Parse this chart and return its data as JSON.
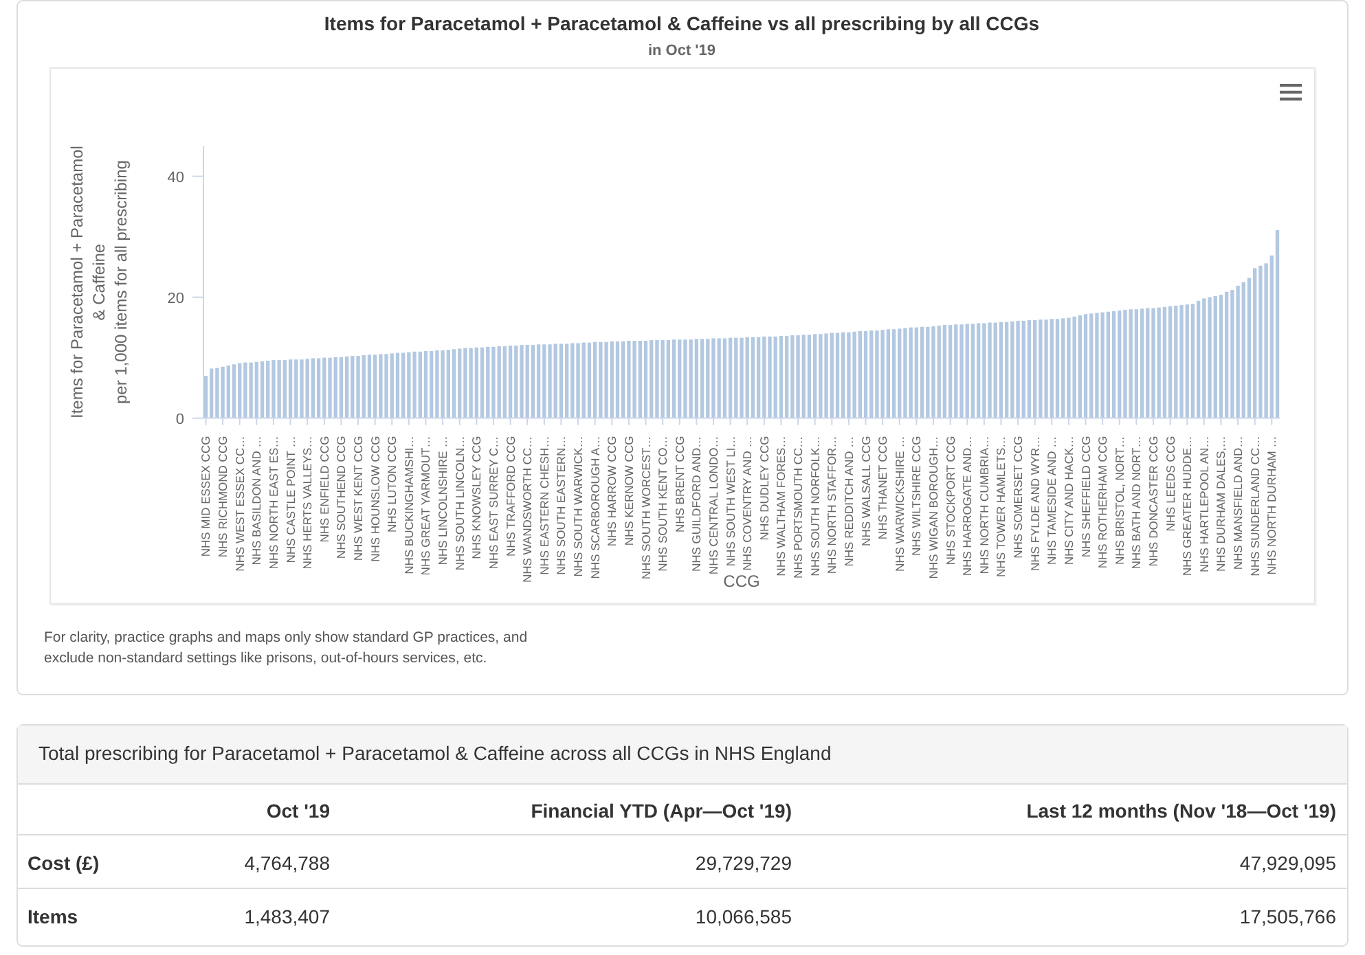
{
  "chart_data": [
    {
      "type": "bar",
      "title": "Items for Paracetamol + Paracetamol & Caffeine vs all prescribing by all CCGs",
      "subtitle": "in Oct '19",
      "xlabel": "CCG",
      "ylabel": "Items for Paracetamol + Paracetamol & Caffeine\nper 1,000 items for all prescribing",
      "categories": [
        "NHS MID ESSEX CCG",
        null,
        null,
        "NHS RICHMOND CCG",
        null,
        null,
        "NHS WEST ESSEX CC…",
        null,
        null,
        "NHS BASILDON AND …",
        null,
        null,
        "NHS NORTH EAST ES…",
        null,
        null,
        "NHS CASTLE POINT …",
        null,
        null,
        "NHS HERTS VALLEYS…",
        null,
        null,
        "NHS ENFIELD CCG",
        null,
        null,
        "NHS SOUTHEND CCG",
        null,
        null,
        "NHS WEST KENT CCG",
        null,
        null,
        "NHS HOUNSLOW CCG",
        null,
        null,
        "NHS LUTON CCG",
        null,
        null,
        "NHS BUCKINGHAMSHI…",
        null,
        null,
        "NHS GREAT YARMOUT…",
        null,
        null,
        "NHS LINCOLNSHIRE …",
        null,
        null,
        "NHS SOUTH LINCOLN…",
        null,
        null,
        "NHS KNOWSLEY CCG",
        null,
        null,
        "NHS EAST SURREY C…",
        null,
        null,
        "NHS TRAFFORD CCG",
        null,
        null,
        "NHS WANDSWORTH CC…",
        null,
        null,
        "NHS EASTERN CHESH…",
        null,
        null,
        "NHS SOUTH EASTERN…",
        null,
        null,
        "NHS SOUTH WARWICK…",
        null,
        null,
        "NHS SCARBOROUGH A…",
        null,
        null,
        "NHS HARROW CCG",
        null,
        null,
        "NHS KERNOW CCG",
        null,
        null,
        "NHS SOUTH WORCEST…",
        null,
        null,
        "NHS SOUTH KENT CO…",
        null,
        null,
        "NHS BRENT CCG",
        null,
        null,
        "NHS GUILDFORD AND…",
        null,
        null,
        "NHS CENTRAL LONDO…",
        null,
        null,
        "NHS SOUTH WEST LI…",
        null,
        null,
        "NHS COVENTRY AND …",
        null,
        null,
        "NHS DUDLEY CCG",
        null,
        null,
        "NHS WALTHAM FORES…",
        null,
        null,
        "NHS PORTSMOUTH CC…",
        null,
        null,
        "NHS SOUTH NORFOLK…",
        null,
        null,
        "NHS NORTH STAFFOR…",
        null,
        null,
        "NHS REDDITCH AND …",
        null,
        null,
        "NHS WALSALL CCG",
        null,
        null,
        "NHS THANET CCG",
        null,
        null,
        "NHS WARWICKSHIRE …",
        null,
        null,
        "NHS WILTSHIRE CCG",
        null,
        null,
        "NHS WIGAN BOROUGH…",
        null,
        null,
        "NHS STOCKPORT CCG",
        null,
        null,
        "NHS HARROGATE AND…",
        null,
        null,
        "NHS NORTH CUMBRIA…",
        null,
        null,
        "NHS TOWER HAMLETS…",
        null,
        null,
        "NHS SOMERSET CCG",
        null,
        null,
        "NHS FYLDE AND WYR…",
        null,
        null,
        "NHS TAMESIDE AND …",
        null,
        null,
        "NHS CITY AND HACK…",
        null,
        null,
        "NHS SHEFFIELD CCG",
        null,
        null,
        "NHS ROTHERHAM CCG",
        null,
        null,
        "NHS BRISTOL, NORT…",
        null,
        null,
        "NHS BATH AND NORT…",
        null,
        null,
        "NHS DONCASTER CCG",
        null,
        null,
        "NHS LEEDS CCG",
        null,
        null,
        "NHS GREATER HUDDE…",
        null,
        null,
        "NHS HARTLEPOOL AN…",
        null,
        null,
        "NHS DURHAM DALES,…",
        null,
        null,
        "NHS MANSFIELD AND…",
        null,
        null,
        "NHS SUNDERLAND CC…",
        null,
        null,
        "NHS NORTH DURHAM …",
        null
      ],
      "values": [
        7.0,
        8.2,
        8.3,
        8.5,
        8.7,
        8.9,
        9.1,
        9.2,
        9.2,
        9.3,
        9.4,
        9.5,
        9.6,
        9.6,
        9.6,
        9.7,
        9.7,
        9.7,
        9.8,
        9.9,
        9.9,
        10.0,
        10.0,
        10.1,
        10.1,
        10.2,
        10.3,
        10.3,
        10.4,
        10.5,
        10.5,
        10.6,
        10.6,
        10.7,
        10.8,
        10.8,
        10.9,
        11.0,
        11.0,
        11.1,
        11.1,
        11.2,
        11.2,
        11.3,
        11.4,
        11.5,
        11.6,
        11.6,
        11.7,
        11.7,
        11.8,
        11.8,
        11.9,
        11.9,
        12.0,
        12.0,
        12.1,
        12.1,
        12.1,
        12.2,
        12.2,
        12.2,
        12.3,
        12.3,
        12.3,
        12.4,
        12.4,
        12.5,
        12.5,
        12.6,
        12.6,
        12.6,
        12.7,
        12.7,
        12.7,
        12.8,
        12.8,
        12.8,
        12.8,
        12.9,
        12.9,
        12.9,
        12.9,
        13.0,
        13.0,
        13.0,
        13.0,
        13.1,
        13.1,
        13.1,
        13.2,
        13.2,
        13.2,
        13.3,
        13.3,
        13.3,
        13.4,
        13.4,
        13.4,
        13.5,
        13.5,
        13.5,
        13.6,
        13.6,
        13.7,
        13.7,
        13.8,
        13.8,
        13.9,
        13.9,
        14.0,
        14.1,
        14.1,
        14.2,
        14.2,
        14.3,
        14.4,
        14.4,
        14.5,
        14.5,
        14.6,
        14.7,
        14.7,
        14.8,
        14.9,
        15.0,
        15.0,
        15.1,
        15.1,
        15.2,
        15.3,
        15.4,
        15.4,
        15.5,
        15.5,
        15.6,
        15.6,
        15.7,
        15.7,
        15.8,
        15.8,
        15.9,
        15.9,
        16.0,
        16.1,
        16.1,
        16.2,
        16.2,
        16.3,
        16.3,
        16.4,
        16.4,
        16.5,
        16.6,
        16.8,
        17.0,
        17.2,
        17.3,
        17.4,
        17.5,
        17.6,
        17.7,
        17.8,
        17.9,
        18.0,
        18.0,
        18.1,
        18.2,
        18.2,
        18.3,
        18.4,
        18.5,
        18.6,
        18.7,
        18.8,
        18.9,
        19.4,
        19.8,
        20.0,
        20.2,
        20.4,
        20.9,
        21.2,
        21.9,
        22.5,
        23.2,
        24.8,
        25.2,
        25.6,
        26.9,
        31.1
      ],
      "color": "#b3c8e1",
      "ylim": [
        0,
        45
      ],
      "yticks": [
        0,
        20,
        40
      ],
      "annotations": [
        "For clarity, practice graphs and maps only show standard GP practices, and exclude non-standard settings like prisons, out-of-hours services, etc."
      ]
    },
    {
      "type": "other",
      "title": "Total prescribing for Paracetamol + Paracetamol & Caffeine across all CCGs in NHS England",
      "categories": [
        "Oct '19",
        "Financial YTD (Apr—Oct '19)",
        "Last 12 months (Nov '18—Oct '19)"
      ],
      "y_categories": [
        "Cost (£)",
        "Items"
      ],
      "cell_labels": [
        [
          "4,764,788",
          "29,729,729",
          "47,929,095"
        ],
        [
          "1,483,407",
          "10,066,585",
          "17,505,766"
        ]
      ]
    }
  ]
}
